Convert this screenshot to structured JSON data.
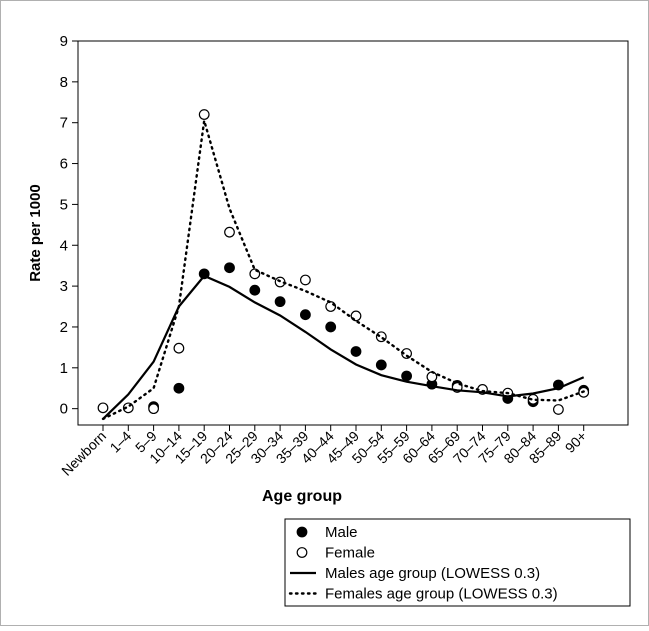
{
  "chart_data": {
    "type": "scatter",
    "title": "",
    "xlabel": "Age group",
    "ylabel": "Rate per 1000",
    "ylim": [
      -0.4,
      9
    ],
    "yticks": [
      0,
      1,
      2,
      3,
      4,
      5,
      6,
      7,
      8,
      9
    ],
    "grid": false,
    "legend_position": "bottom-right",
    "categories": [
      "Newborn",
      "1–4",
      "5–9",
      "10–14",
      "15–19",
      "20–24",
      "25–29",
      "30–34",
      "35–39",
      "40–44",
      "45–49",
      "50–54",
      "55–59",
      "60–64",
      "65–69",
      "70–74",
      "75–79",
      "80–84",
      "85–89",
      "90+"
    ],
    "series": [
      {
        "name": "Male",
        "kind": "points",
        "marker": "filled-circle",
        "values": [
          null,
          null,
          0.05,
          0.5,
          3.3,
          3.45,
          2.9,
          2.62,
          2.3,
          2.0,
          1.4,
          1.07,
          0.8,
          0.6,
          0.57,
          null,
          0.25,
          0.17,
          0.58,
          0.45
        ]
      },
      {
        "name": "Female",
        "kind": "points",
        "marker": "open-circle",
        "values": [
          0.02,
          0.02,
          0.0,
          1.48,
          7.2,
          4.32,
          3.3,
          3.1,
          3.15,
          2.5,
          2.27,
          1.76,
          1.35,
          0.78,
          0.52,
          0.47,
          0.38,
          0.23,
          -0.02,
          0.4
        ]
      },
      {
        "name": "Males age group (LOWESS 0.3)",
        "kind": "line",
        "style": "solid",
        "values": [
          -0.25,
          0.35,
          1.15,
          2.5,
          3.25,
          2.98,
          2.6,
          2.28,
          1.88,
          1.45,
          1.08,
          0.82,
          0.66,
          0.55,
          0.45,
          0.4,
          0.3,
          0.37,
          0.5,
          0.77
        ]
      },
      {
        "name": "Females age group (LOWESS 0.3)",
        "kind": "line",
        "style": "dotted",
        "values": [
          -0.25,
          0.05,
          0.5,
          2.5,
          7.05,
          4.9,
          3.4,
          3.12,
          2.88,
          2.6,
          2.15,
          1.75,
          1.3,
          0.9,
          0.62,
          0.43,
          0.38,
          0.22,
          0.2,
          0.42
        ]
      }
    ]
  }
}
